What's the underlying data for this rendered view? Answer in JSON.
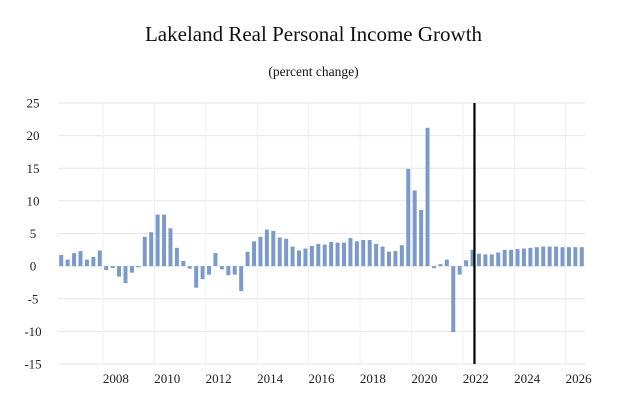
{
  "chart_data": {
    "type": "bar",
    "title": "Lakeland Real Personal Income Growth",
    "subtitle": "(percent change)",
    "xlabel": "",
    "ylabel": "",
    "ylim": [
      -15,
      25
    ],
    "yticks": [
      -15,
      -10,
      -5,
      0,
      5,
      10,
      15,
      20,
      25
    ],
    "xtick_labels": [
      "2008",
      "2010",
      "2012",
      "2014",
      "2016",
      "2018",
      "2020",
      "2022",
      "2024",
      "2026"
    ],
    "grid": true,
    "legend": "none",
    "bar_color": "#7b9acc",
    "divider_color": "#000000",
    "divider_after_period": "2022Q2",
    "categories": [
      "2006Q2",
      "2006Q3",
      "2006Q4",
      "2007Q1",
      "2007Q2",
      "2007Q3",
      "2007Q4",
      "2008Q1",
      "2008Q2",
      "2008Q3",
      "2008Q4",
      "2009Q1",
      "2009Q2",
      "2009Q3",
      "2009Q4",
      "2010Q1",
      "2010Q2",
      "2010Q3",
      "2010Q4",
      "2011Q1",
      "2011Q2",
      "2011Q3",
      "2011Q4",
      "2012Q1",
      "2012Q2",
      "2012Q3",
      "2012Q4",
      "2013Q1",
      "2013Q2",
      "2013Q3",
      "2013Q4",
      "2014Q1",
      "2014Q2",
      "2014Q3",
      "2014Q4",
      "2015Q1",
      "2015Q2",
      "2015Q3",
      "2015Q4",
      "2016Q1",
      "2016Q2",
      "2016Q3",
      "2016Q4",
      "2017Q1",
      "2017Q2",
      "2017Q3",
      "2017Q4",
      "2018Q1",
      "2018Q2",
      "2018Q3",
      "2018Q4",
      "2019Q1",
      "2019Q2",
      "2019Q3",
      "2019Q4",
      "2020Q1",
      "2020Q2",
      "2020Q3",
      "2020Q4",
      "2021Q1",
      "2021Q2",
      "2021Q3",
      "2021Q4",
      "2022Q1",
      "2022Q2",
      "2022Q3",
      "2022Q4",
      "2023Q1",
      "2023Q2",
      "2023Q3",
      "2023Q4",
      "2024Q1",
      "2024Q2",
      "2024Q3",
      "2024Q4",
      "2025Q1",
      "2025Q2",
      "2025Q3",
      "2025Q4",
      "2026Q1",
      "2026Q2",
      "2026Q3"
    ],
    "values": [
      1.7,
      1.0,
      2.0,
      2.3,
      1.0,
      1.4,
      2.4,
      -0.6,
      -0.3,
      -1.6,
      -2.6,
      -1.0,
      -0.2,
      4.5,
      5.2,
      7.9,
      7.9,
      5.8,
      2.8,
      0.8,
      -0.4,
      -3.3,
      -2.0,
      -1.3,
      2.0,
      -0.5,
      -1.4,
      -1.3,
      -3.8,
      2.2,
      3.8,
      4.5,
      5.6,
      5.4,
      4.4,
      4.2,
      3.0,
      2.4,
      2.7,
      3.1,
      3.4,
      3.3,
      3.7,
      3.6,
      3.6,
      4.3,
      3.8,
      4.0,
      4.0,
      3.4,
      3.0,
      2.2,
      2.3,
      3.2,
      14.9,
      11.6,
      8.6,
      21.2,
      -0.3,
      0.3,
      1.0,
      -10.1,
      -1.3,
      0.9,
      2.5,
      1.9,
      1.8,
      1.8,
      2.1,
      2.5,
      2.5,
      2.6,
      2.7,
      2.8,
      2.9,
      3.0,
      3.0,
      3.0,
      2.9,
      2.9,
      2.9,
      2.9
    ]
  }
}
